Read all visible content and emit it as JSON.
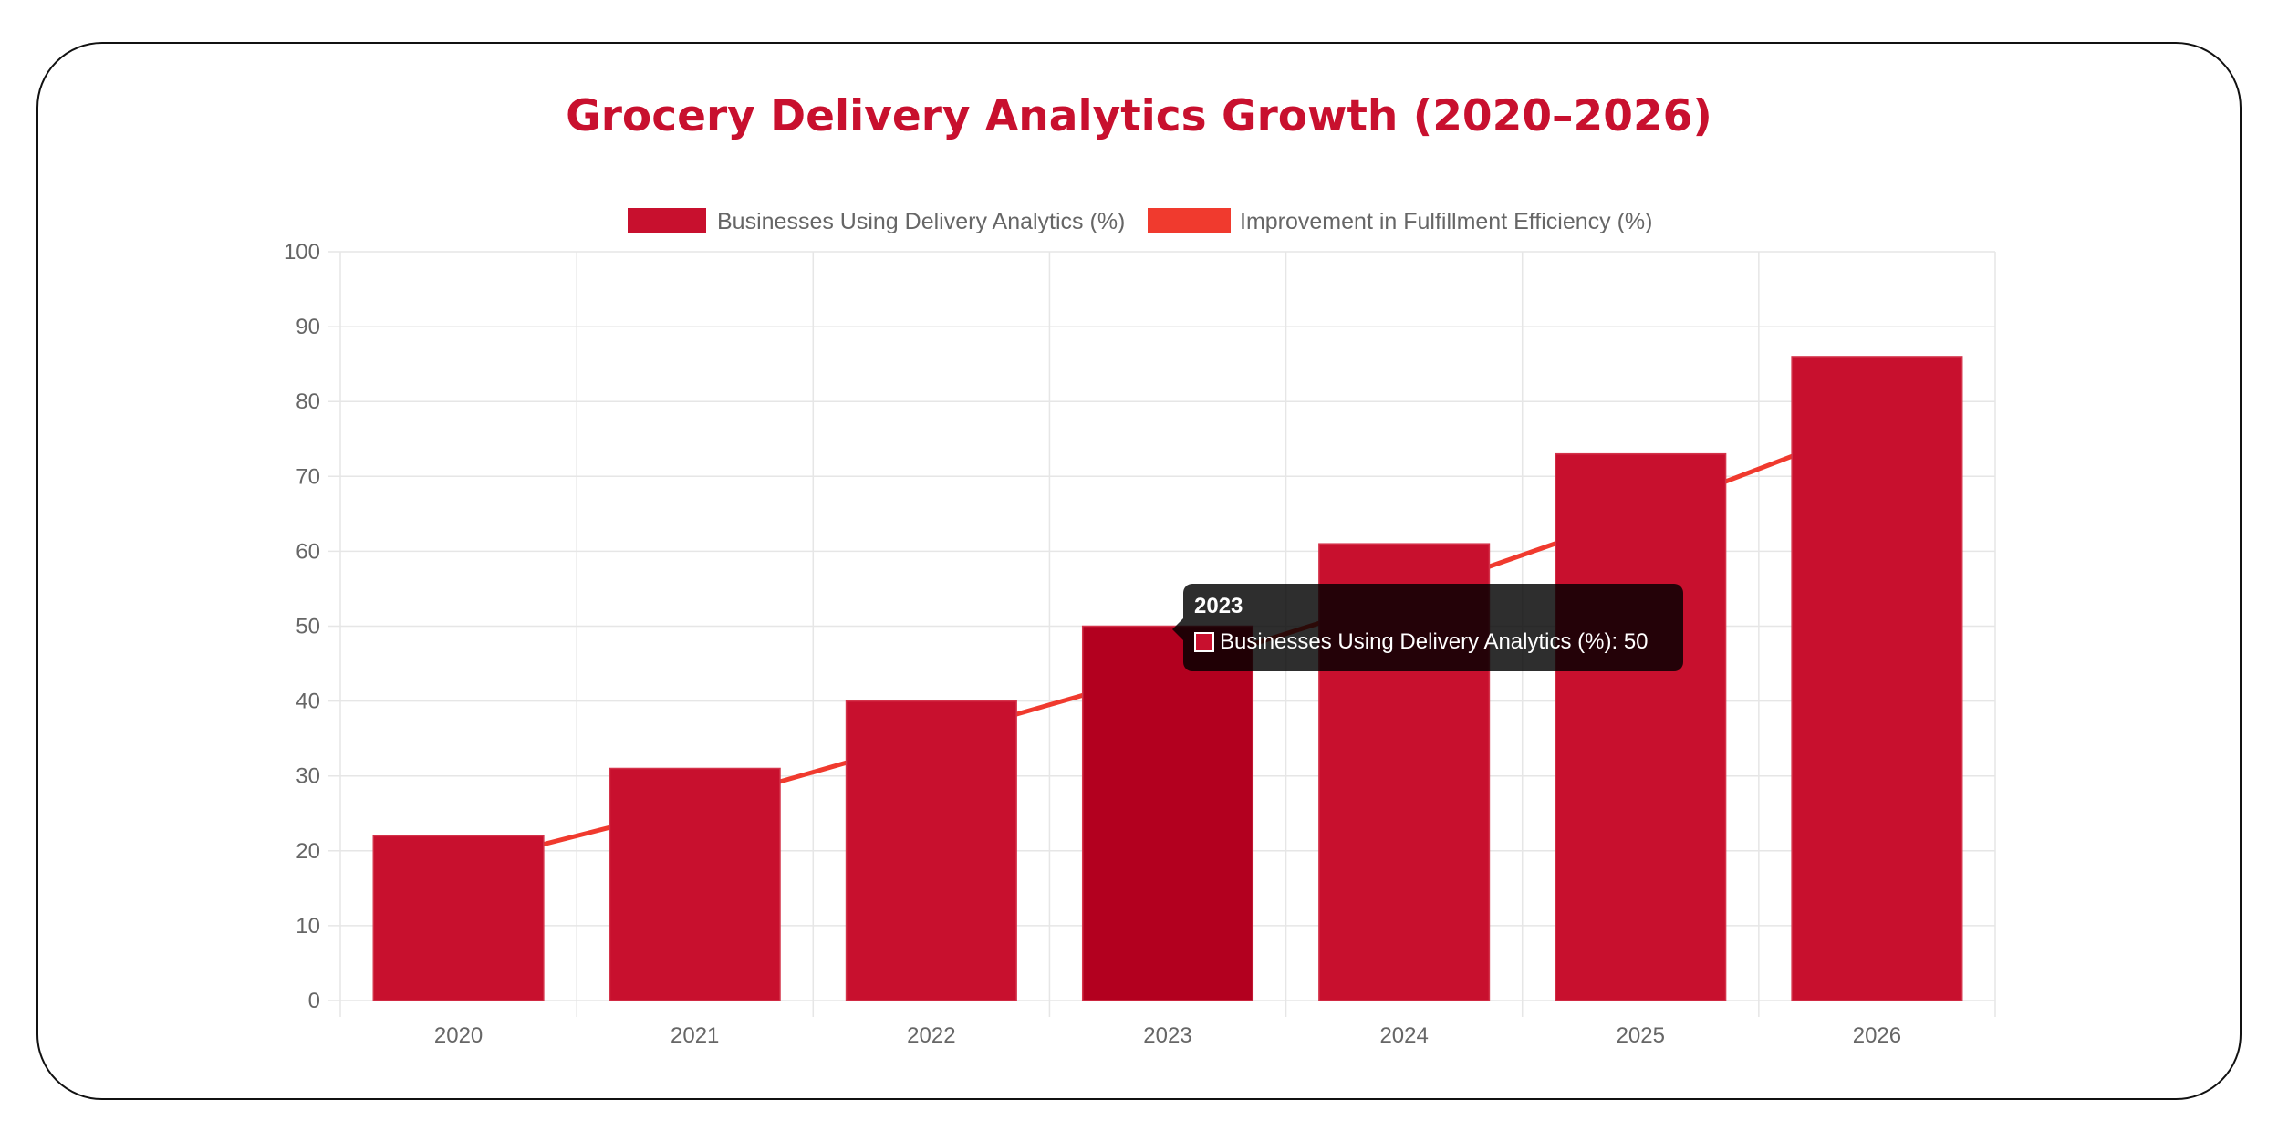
{
  "colors": {
    "title": "#c8102e",
    "bar": "#c8102e",
    "bar_active": "#b3001f",
    "line": "#f03a2e",
    "grid": "#e6e6e6",
    "axis_text": "#666666"
  },
  "chart_data": {
    "type": "bar",
    "title": "Grocery Delivery Analytics Growth (2020–2026)",
    "categories": [
      "2020",
      "2021",
      "2022",
      "2023",
      "2024",
      "2025",
      "2026"
    ],
    "series": [
      {
        "name": "Businesses Using Delivery Analytics (%)",
        "type": "bar",
        "color": "#c8102e",
        "values": [
          22,
          31,
          40,
          50,
          61,
          73,
          86
        ]
      },
      {
        "name": "Improvement in Fulfillment Efficiency (%)",
        "type": "line",
        "color": "#f03a2e",
        "values": [
          18,
          26,
          35,
          44,
          54,
          65,
          77
        ]
      }
    ],
    "ylim": [
      0,
      100
    ],
    "yticks": [
      "0",
      "10",
      "20",
      "30",
      "40",
      "50",
      "60",
      "70",
      "80",
      "90",
      "100"
    ],
    "grid": true,
    "legend": "top-center",
    "tooltip": {
      "title": "2023",
      "label": "Businesses Using Delivery Analytics (%): 50"
    }
  }
}
